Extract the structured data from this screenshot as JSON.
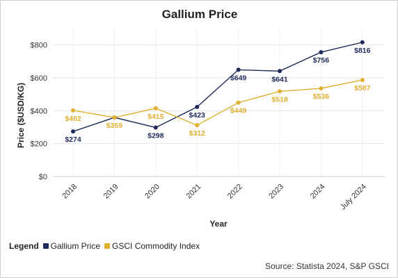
{
  "chart_data": {
    "type": "line",
    "title": "Gallium Price",
    "xlabel": "Year",
    "ylabel": "Price ($USD/KG)",
    "categories": [
      "2018",
      "2019",
      "2020",
      "2021",
      "2022",
      "2023",
      "2024",
      "July 2024"
    ],
    "ylim": [
      0,
      900
    ],
    "yticks": [
      0,
      200,
      400,
      600,
      800
    ],
    "ytick_labels": [
      "$0",
      "$200",
      "$400",
      "$600",
      "$800"
    ],
    "grid": true,
    "series": [
      {
        "name": "Gallium Price",
        "color": "#1f2a5a",
        "values": [
          274,
          359,
          298,
          423,
          649,
          641,
          756,
          816
        ],
        "labels": [
          "$274",
          "",
          "$298",
          "$423",
          "$649",
          "$641",
          "$756",
          "$816"
        ]
      },
      {
        "name": "GSCI Commodity Index",
        "color": "#e0b030",
        "values": [
          402,
          359,
          415,
          312,
          449,
          518,
          536,
          587
        ],
        "labels": [
          "$402",
          "$359",
          "$415",
          "$312",
          "$449",
          "$518",
          "$536",
          "$587"
        ]
      }
    ],
    "legend": {
      "title": "Legend",
      "position": "bottom-left"
    },
    "source": "Source: Statista 2024, S&P GSCI"
  }
}
